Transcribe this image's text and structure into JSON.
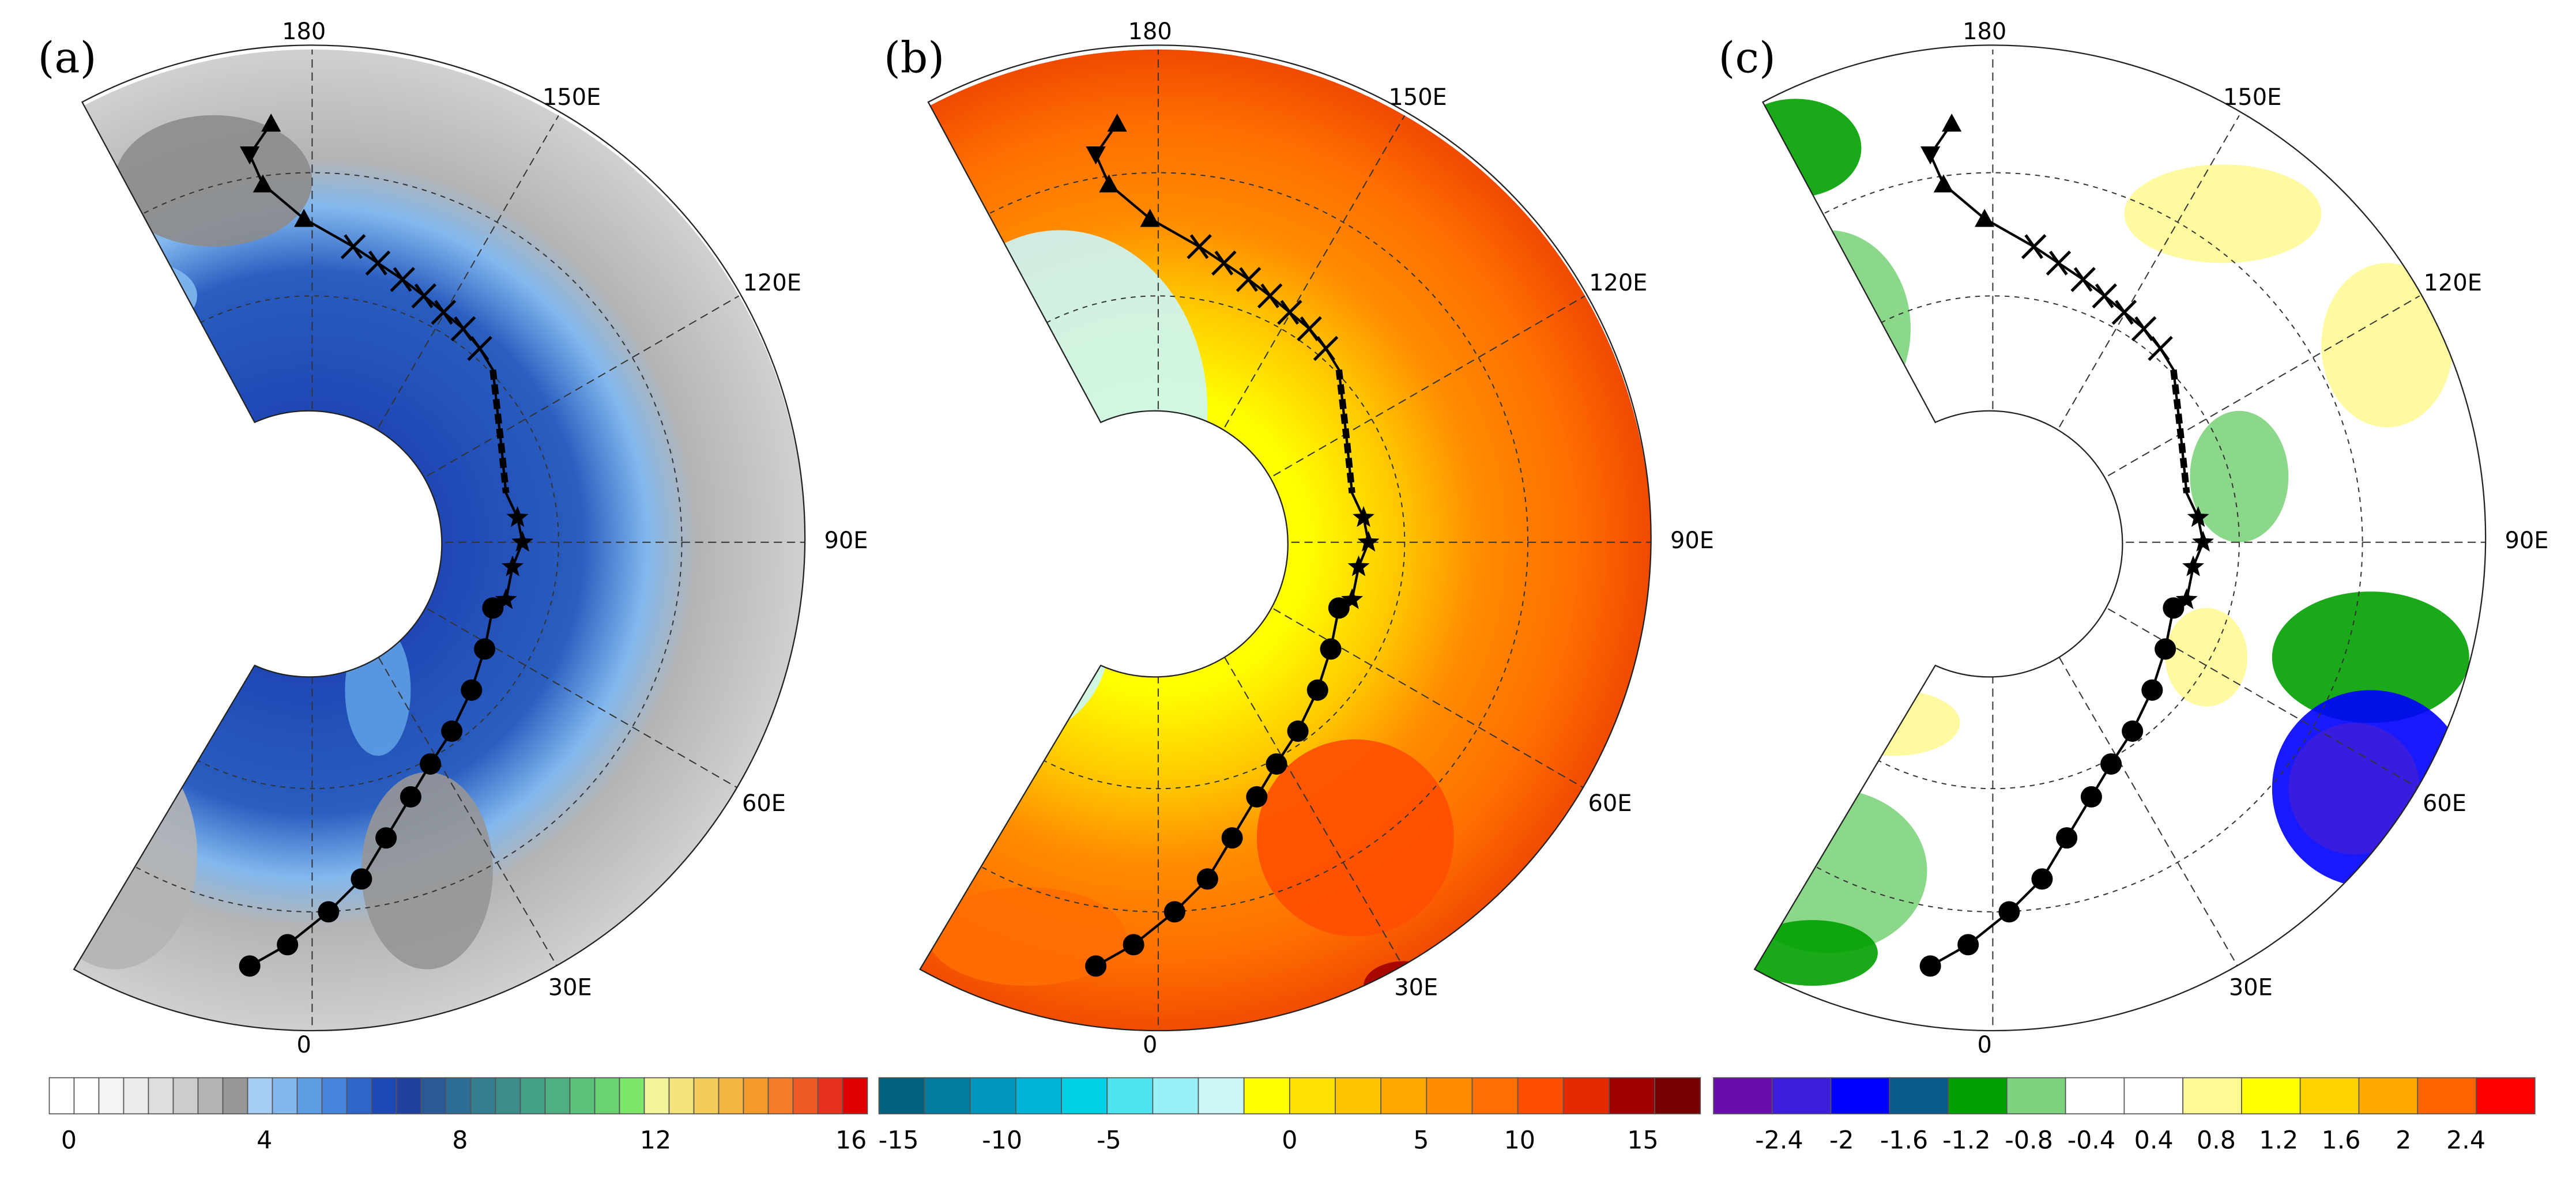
{
  "panels": [
    {
      "label": "(a)",
      "longitude_labels": [
        "180",
        "150E",
        "120E",
        "90E",
        "60E",
        "30E",
        "0"
      ],
      "colorbar": {
        "ticks": [
          0,
          4,
          8,
          12,
          16
        ],
        "colors": [
          "#ffffff",
          "#ffffff",
          "#f4f4f4",
          "#ececec",
          "#dedede",
          "#cccccc",
          "#b4b4b4",
          "#969696",
          "#a6cdf2",
          "#82b8ee",
          "#5e9ee4",
          "#4684dc",
          "#2e66cc",
          "#1e48b6",
          "#22409e",
          "#2a5a96",
          "#2e6e94",
          "#347e90",
          "#3c8e8a",
          "#44a086",
          "#4eb080",
          "#5ac27a",
          "#6ad272",
          "#7ee66a",
          "#f4f49a",
          "#f4e27a",
          "#f4cc5a",
          "#f4b440",
          "#f49a2c",
          "#f47c28",
          "#f05a24",
          "#e8321e",
          "#e00000"
        ]
      }
    },
    {
      "label": "(b)",
      "longitude_labels": [
        "180",
        "150E",
        "120E",
        "90E",
        "60E",
        "30E",
        "0"
      ],
      "colorbar": {
        "ticks": [
          -15,
          -10,
          -5,
          0,
          5,
          10,
          15
        ],
        "colors": [
          "#00607e",
          "#007c9e",
          "#0096bc",
          "#00b4d8",
          "#00d0e6",
          "#50e4f0",
          "#98f0f6",
          "#ccf6f8",
          "#ffff00",
          "#ffe000",
          "#ffc400",
          "#ffa800",
          "#ff8c00",
          "#ff6e00",
          "#ff4e00",
          "#e62a00",
          "#a00000",
          "#760000"
        ]
      }
    },
    {
      "label": "(c)",
      "longitude_labels": [
        "180",
        "150E",
        "120E",
        "90E",
        "60E",
        "30E",
        "0"
      ],
      "colorbar": {
        "ticks": [
          -2.4,
          -2,
          -1.6,
          -1.2,
          -0.8,
          -0.4,
          0.4,
          0.8,
          1.2,
          1.6,
          2,
          2.4
        ],
        "colors": [
          "#6a0dad",
          "#3c1edc",
          "#0000ff",
          "#0a5a8c",
          "#00a000",
          "#7ed47e",
          "#ffffff",
          "#ffffff",
          "#fffa96",
          "#ffff00",
          "#ffd200",
          "#ffaa00",
          "#ff6400",
          "#ff0000"
        ]
      }
    }
  ]
}
